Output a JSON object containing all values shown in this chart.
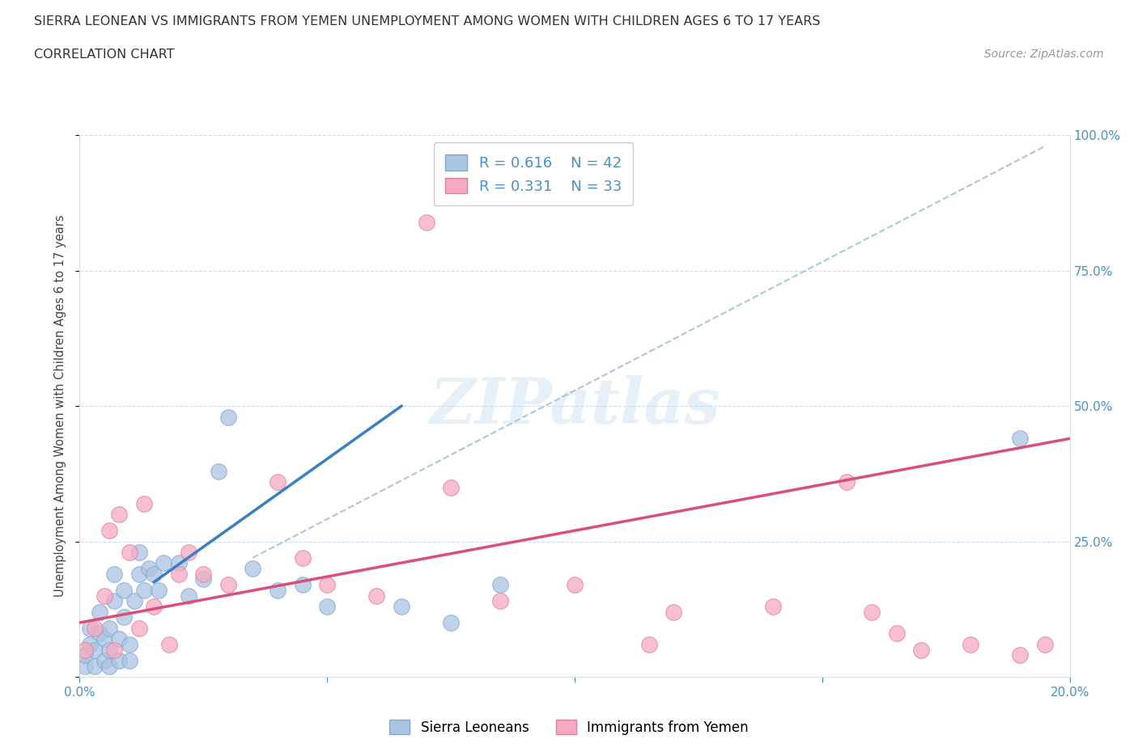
{
  "title_line1": "SIERRA LEONEAN VS IMMIGRANTS FROM YEMEN UNEMPLOYMENT AMONG WOMEN WITH CHILDREN AGES 6 TO 17 YEARS",
  "title_line2": "CORRELATION CHART",
  "source": "Source: ZipAtlas.com",
  "ylabel": "Unemployment Among Women with Children Ages 6 to 17 years",
  "xlim": [
    0.0,
    0.2
  ],
  "ylim": [
    0.0,
    1.0
  ],
  "xticks": [
    0.0,
    0.05,
    0.1,
    0.15,
    0.2
  ],
  "yticks": [
    0.0,
    0.25,
    0.5,
    0.75,
    1.0
  ],
  "blue_color": "#aac4e2",
  "pink_color": "#f5aabf",
  "blue_edge_color": "#80aad4",
  "pink_edge_color": "#e080a0",
  "blue_line_color": "#3a7fc1",
  "pink_line_color": "#d94f7a",
  "dashed_line_color": "#aac8d8",
  "right_tick_color": "#4a90c4",
  "watermark": "ZIPatlas",
  "blue_scatter_x": [
    0.001,
    0.001,
    0.002,
    0.002,
    0.003,
    0.003,
    0.004,
    0.004,
    0.005,
    0.005,
    0.006,
    0.006,
    0.006,
    0.007,
    0.007,
    0.008,
    0.008,
    0.009,
    0.009,
    0.01,
    0.01,
    0.011,
    0.012,
    0.012,
    0.013,
    0.014,
    0.015,
    0.016,
    0.017,
    0.02,
    0.022,
    0.025,
    0.028,
    0.03,
    0.035,
    0.04,
    0.045,
    0.05,
    0.065,
    0.075,
    0.085,
    0.19
  ],
  "blue_scatter_y": [
    0.02,
    0.04,
    0.06,
    0.09,
    0.02,
    0.05,
    0.08,
    0.12,
    0.03,
    0.07,
    0.02,
    0.05,
    0.09,
    0.14,
    0.19,
    0.03,
    0.07,
    0.11,
    0.16,
    0.03,
    0.06,
    0.14,
    0.19,
    0.23,
    0.16,
    0.2,
    0.19,
    0.16,
    0.21,
    0.21,
    0.15,
    0.18,
    0.38,
    0.48,
    0.2,
    0.16,
    0.17,
    0.13,
    0.13,
    0.1,
    0.17,
    0.44
  ],
  "pink_scatter_x": [
    0.001,
    0.003,
    0.005,
    0.006,
    0.007,
    0.008,
    0.01,
    0.012,
    0.013,
    0.015,
    0.018,
    0.02,
    0.022,
    0.025,
    0.03,
    0.04,
    0.045,
    0.05,
    0.06,
    0.07,
    0.075,
    0.085,
    0.1,
    0.115,
    0.12,
    0.14,
    0.155,
    0.16,
    0.165,
    0.17,
    0.18,
    0.19,
    0.195
  ],
  "pink_scatter_y": [
    0.05,
    0.09,
    0.15,
    0.27,
    0.05,
    0.3,
    0.23,
    0.09,
    0.32,
    0.13,
    0.06,
    0.19,
    0.23,
    0.19,
    0.17,
    0.36,
    0.22,
    0.17,
    0.15,
    0.84,
    0.35,
    0.14,
    0.17,
    0.06,
    0.12,
    0.13,
    0.36,
    0.12,
    0.08,
    0.05,
    0.06,
    0.04,
    0.06
  ],
  "blue_line_x": [
    0.015,
    0.065
  ],
  "blue_line_y": [
    0.175,
    0.5
  ],
  "pink_line_x": [
    0.0,
    0.2
  ],
  "pink_line_y": [
    0.1,
    0.44
  ],
  "dashed_line_x": [
    0.035,
    0.195
  ],
  "dashed_line_y": [
    0.22,
    0.98
  ]
}
